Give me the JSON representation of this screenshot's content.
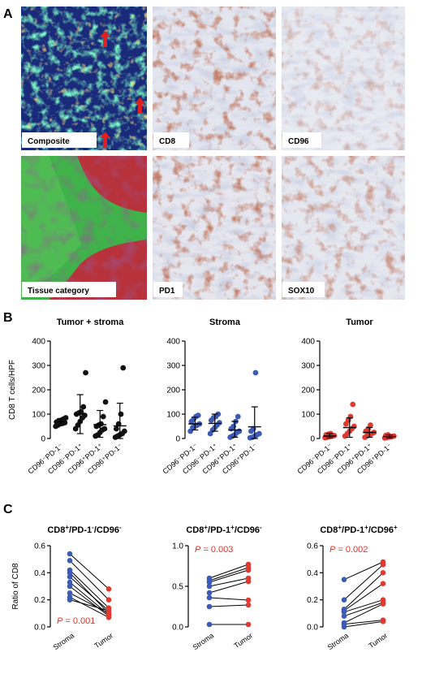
{
  "figure": {
    "panel_a": {
      "letter": "A",
      "tiles": [
        {
          "label": "Composite",
          "style": "composite"
        },
        {
          "label": "CD8",
          "style": "ihc"
        },
        {
          "label": "CD96",
          "style": "ihc-light"
        },
        {
          "label": "Tissue category",
          "style": "tissue"
        },
        {
          "label": "PD1",
          "style": "ihc"
        },
        {
          "label": "SOX10",
          "style": "ihc-mid"
        }
      ]
    },
    "panel_b": {
      "letter": "B"
    },
    "panel_c": {
      "letter": "C"
    }
  },
  "chart_data": [
    {
      "type": "scatter",
      "panel": "B",
      "title": "Tumor + stroma",
      "ylabel": "CD8 T cells/HPF",
      "ylim": [
        0,
        400
      ],
      "yticks": [
        0,
        100,
        200,
        300,
        400
      ],
      "categories": [
        "CD96⁻PD-1⁻",
        "CD96⁻PD-1⁺",
        "CD96⁺PD-1⁺",
        "CD96⁺PD-1⁻"
      ],
      "color": "#111111",
      "values": [
        [
          50,
          55,
          60,
          62,
          65,
          68,
          72,
          75,
          80,
          85
        ],
        [
          40,
          55,
          70,
          85,
          95,
          100,
          105,
          110,
          130,
          270
        ],
        [
          10,
          15,
          25,
          35,
          40,
          50,
          55,
          60,
          90,
          150
        ],
        [
          5,
          10,
          15,
          20,
          30,
          40,
          60,
          100,
          290
        ]
      ],
      "means": [
        68,
        100,
        57,
        52
      ],
      "sd": [
        [
          55,
          82
        ],
        [
          20,
          180
        ],
        [
          5,
          115
        ],
        [
          -40,
          145
        ]
      ]
    },
    {
      "type": "scatter",
      "panel": "B",
      "title": "Stroma",
      "ylabel": "",
      "ylim": [
        0,
        400
      ],
      "yticks": [
        0,
        100,
        200,
        300,
        400
      ],
      "categories": [
        "CD96⁻PD-1⁻",
        "CD96⁻PD-1⁺",
        "CD96⁺PD-1⁺",
        "CD96⁺PD-1⁻"
      ],
      "color": "#3d5bb4",
      "values": [
        [
          30,
          45,
          50,
          55,
          60,
          70,
          80,
          90,
          95
        ],
        [
          20,
          35,
          45,
          55,
          65,
          75,
          85,
          90,
          100
        ],
        [
          5,
          10,
          15,
          25,
          30,
          40,
          50,
          70,
          90
        ],
        [
          3,
          5,
          10,
          15,
          20,
          30,
          40,
          270
        ]
      ],
      "means": [
        60,
        62,
        35,
        48
      ],
      "sd": [
        [
          35,
          88
        ],
        [
          30,
          100
        ],
        [
          5,
          70
        ],
        [
          -30,
          130
        ]
      ]
    },
    {
      "type": "scatter",
      "panel": "B",
      "title": "Tumor",
      "ylabel": "",
      "ylim": [
        0,
        400
      ],
      "yticks": [
        0,
        100,
        200,
        300,
        400
      ],
      "categories": [
        "CD96⁻PD-1⁻",
        "CD96⁻PD-1⁺",
        "CD96⁺PD-1⁺",
        "CD96⁺PD-1⁻"
      ],
      "color": "#e03a30",
      "values": [
        [
          3,
          5,
          8,
          10,
          12,
          15,
          18,
          20
        ],
        [
          10,
          20,
          30,
          40,
          50,
          60,
          75,
          90,
          140
        ],
        [
          5,
          10,
          15,
          20,
          25,
          30,
          40,
          55
        ],
        [
          2,
          4,
          6,
          8,
          10,
          12,
          15
        ]
      ],
      "means": [
        10,
        45,
        25,
        8
      ],
      "sd": [
        [
          2,
          20
        ],
        [
          5,
          85
        ],
        [
          5,
          45
        ],
        [
          2,
          15
        ]
      ]
    },
    {
      "type": "line",
      "panel": "C",
      "title_parts": [
        "CD8",
        "+",
        "/PD-1",
        "-",
        "/CD96",
        "-"
      ],
      "ylabel": "Ratio of CD8",
      "ylim": [
        0,
        0.6
      ],
      "yticks": [
        0.0,
        0.2,
        0.4,
        0.6
      ],
      "ytick_labels": [
        "0.0",
        "0.2",
        "0.4",
        "0.6"
      ],
      "categories": [
        "Stroma",
        "Tumor"
      ],
      "pvalue": "P = 0.001",
      "pvalue_position": "bottom-left",
      "pairs": [
        [
          0.54,
          0.28
        ],
        [
          0.49,
          0.2
        ],
        [
          0.42,
          0.14
        ],
        [
          0.4,
          0.1
        ],
        [
          0.37,
          0.12
        ],
        [
          0.33,
          0.09
        ],
        [
          0.3,
          0.08
        ],
        [
          0.25,
          0.1
        ],
        [
          0.22,
          0.07
        ],
        [
          0.2,
          0.12
        ]
      ]
    },
    {
      "type": "line",
      "panel": "C",
      "title_parts": [
        "CD8",
        "+",
        "/PD-1",
        "+",
        "/CD96",
        "-"
      ],
      "ylabel": "",
      "ylim": [
        0,
        1.0
      ],
      "yticks": [
        0.0,
        0.5,
        1.0
      ],
      "ytick_labels": [
        "0.0",
        "0.5",
        "1.0"
      ],
      "categories": [
        "Stroma",
        "Tumor"
      ],
      "pvalue": "P = 0.003",
      "pvalue_position": "top-left",
      "pairs": [
        [
          0.6,
          0.77
        ],
        [
          0.57,
          0.73
        ],
        [
          0.55,
          0.7
        ],
        [
          0.5,
          0.6
        ],
        [
          0.42,
          0.56
        ],
        [
          0.36,
          0.33
        ],
        [
          0.25,
          0.27
        ],
        [
          0.03,
          0.03
        ]
      ]
    },
    {
      "type": "line",
      "panel": "C",
      "title_parts": [
        "CD8",
        "+",
        "/PD-1",
        "+",
        "/CD96",
        "+"
      ],
      "ylabel": "",
      "ylim": [
        0,
        0.6
      ],
      "yticks": [
        0.0,
        0.2,
        0.4,
        0.6
      ],
      "ytick_labels": [
        "0.0",
        "0.2",
        "0.4",
        "0.6"
      ],
      "categories": [
        "Stroma",
        "Tumor"
      ],
      "pvalue": "P = 0.002",
      "pvalue_position": "top-left",
      "pairs": [
        [
          0.35,
          0.48
        ],
        [
          0.2,
          0.46
        ],
        [
          0.13,
          0.4
        ],
        [
          0.12,
          0.32
        ],
        [
          0.11,
          0.2
        ],
        [
          0.08,
          0.18
        ],
        [
          0.03,
          0.17
        ],
        [
          0.02,
          0.05
        ],
        [
          0.0,
          0.04
        ]
      ]
    }
  ]
}
